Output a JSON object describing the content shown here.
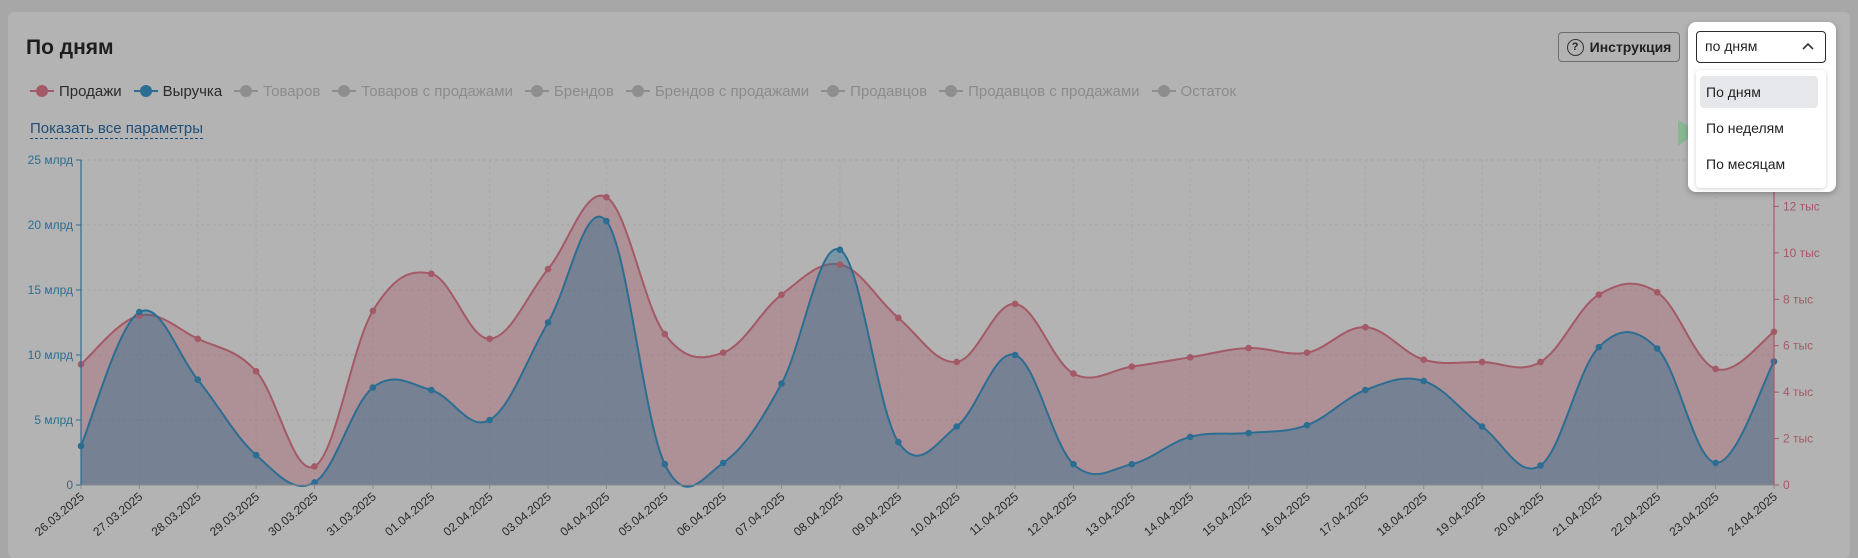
{
  "header": {
    "title": "По дням"
  },
  "legend": [
    {
      "label": "Продажи",
      "active": true,
      "color": "#a45a66"
    },
    {
      "label": "Выручка",
      "active": true,
      "color": "#2c6d92"
    },
    {
      "label": "Товаров",
      "active": false,
      "color": "#8e8e8e"
    },
    {
      "label": "Товаров с продажами",
      "active": false,
      "color": "#8e8e8e"
    },
    {
      "label": "Брендов",
      "active": false,
      "color": "#8e8e8e"
    },
    {
      "label": "Брендов с продажами",
      "active": false,
      "color": "#8e8e8e"
    },
    {
      "label": "Продавцов",
      "active": false,
      "color": "#8e8e8e"
    },
    {
      "label": "Продавцов с продажами",
      "active": false,
      "color": "#8e8e8e"
    },
    {
      "label": "Остаток",
      "active": false,
      "color": "#8e8e8e"
    }
  ],
  "show_params_label": "Показать все параметры",
  "instruction_button": {
    "label": "Инструкция",
    "icon": "question-circle-icon"
  },
  "period_select": {
    "value": "по дням",
    "options": [
      "По дням",
      "По неделям",
      "По месяцам"
    ],
    "selected_index": 0
  },
  "colors": {
    "sales": "#a45a66",
    "revenue": "#2c6d92"
  },
  "chart_data": {
    "type": "area",
    "categories": [
      "26.03.2025",
      "27.03.2025",
      "28.03.2025",
      "29.03.2025",
      "30.03.2025",
      "31.03.2025",
      "01.04.2025",
      "02.04.2025",
      "03.04.2025",
      "04.04.2025",
      "05.04.2025",
      "06.04.2025",
      "07.04.2025",
      "08.04.2025",
      "09.04.2025",
      "10.04.2025",
      "11.04.2025",
      "12.04.2025",
      "13.04.2025",
      "14.04.2025",
      "15.04.2025",
      "16.04.2025",
      "17.04.2025",
      "18.04.2025",
      "19.04.2025",
      "20.04.2025",
      "21.04.2025",
      "22.04.2025",
      "23.04.2025",
      "24.04.2025"
    ],
    "series": [
      {
        "name": "Продажи",
        "axis": "right",
        "values": [
          5200,
          7300,
          6300,
          4900,
          800,
          7500,
          9100,
          6300,
          9300,
          12400,
          6500,
          5700,
          8200,
          9500,
          7200,
          5300,
          7800,
          4800,
          5100,
          5500,
          5900,
          5700,
          6800,
          5400,
          5300,
          5300,
          8200,
          8300,
          5000,
          6600
        ]
      },
      {
        "name": "Выручка",
        "axis": "left",
        "values": [
          3.0,
          13.3,
          8.1,
          2.3,
          0.2,
          7.5,
          7.3,
          5.0,
          12.5,
          20.3,
          1.6,
          1.7,
          7.8,
          18.1,
          3.3,
          4.5,
          10.0,
          1.6,
          1.6,
          3.7,
          4.0,
          4.6,
          7.3,
          8.0,
          4.5,
          1.5,
          10.6,
          10.5,
          1.7,
          9.5
        ]
      }
    ],
    "y_left": {
      "ticks": [
        "0",
        "5 млрд",
        "10 млрд",
        "15 млрд",
        "20 млрд",
        "25 млрд"
      ],
      "tick_values": [
        0,
        5,
        10,
        15,
        20,
        25
      ],
      "range": [
        0,
        25
      ]
    },
    "y_right": {
      "ticks": [
        "0",
        "2 тыс",
        "4 тыс",
        "6 тыс",
        "8 тыс",
        "10 тыс",
        "12 тыс"
      ],
      "tick_values": [
        0,
        2000,
        4000,
        6000,
        8000,
        10000,
        12000
      ],
      "range": [
        0,
        14000
      ]
    },
    "grid": true
  }
}
